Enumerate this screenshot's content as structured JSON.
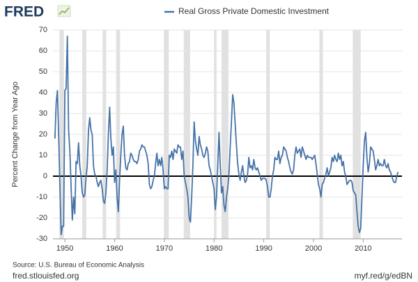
{
  "logo": "FRED",
  "source": "Source: U.S. Bureau of Economic Analysis",
  "footer_left": "fred.stlouisfed.org",
  "footer_right": "myf.red/g/edBN",
  "chart_data": {
    "type": "line",
    "ylabel": "Percent Change from Year Ago",
    "xlim": [
      1947.6,
      2017.8
    ],
    "xticks": [
      1950,
      1960,
      1970,
      1980,
      1990,
      2000,
      2010
    ],
    "ylim": [
      -30,
      70
    ],
    "yticks": [
      -30,
      -20,
      -10,
      0,
      10,
      20,
      30,
      40,
      50,
      60,
      70
    ],
    "grid": true,
    "recessions": [
      [
        1948.9,
        1949.8
      ],
      [
        1953.5,
        1954.3
      ],
      [
        1957.6,
        1958.3
      ],
      [
        1960.3,
        1961.1
      ],
      [
        1969.9,
        1970.9
      ],
      [
        1973.9,
        1975.2
      ],
      [
        1980.0,
        1980.5
      ],
      [
        1981.5,
        1982.9
      ],
      [
        1990.5,
        1991.2
      ],
      [
        2001.2,
        2001.9
      ],
      [
        2007.9,
        2009.5
      ]
    ],
    "recession_color": "#e1e1e1",
    "x": [
      1948,
      1948.25,
      1948.5,
      1948.75,
      1949,
      1949.25,
      1949.5,
      1949.75,
      1950,
      1950.25,
      1950.5,
      1950.75,
      1951,
      1951.25,
      1951.5,
      1951.75,
      1952,
      1952.25,
      1952.5,
      1952.75,
      1953,
      1953.25,
      1953.5,
      1953.75,
      1954,
      1954.25,
      1954.5,
      1954.75,
      1955,
      1955.25,
      1955.5,
      1955.75,
      1956,
      1956.25,
      1956.5,
      1956.75,
      1957,
      1957.25,
      1957.5,
      1957.75,
      1958,
      1958.25,
      1958.5,
      1958.75,
      1959,
      1959.25,
      1959.5,
      1959.75,
      1960,
      1960.25,
      1960.5,
      1960.75,
      1961,
      1961.25,
      1961.5,
      1961.75,
      1962,
      1962.25,
      1962.5,
      1962.75,
      1963,
      1963.25,
      1963.5,
      1963.75,
      1964,
      1964.25,
      1964.5,
      1964.75,
      1965,
      1965.25,
      1965.5,
      1965.75,
      1966,
      1966.25,
      1966.5,
      1966.75,
      1967,
      1967.25,
      1967.5,
      1967.75,
      1968,
      1968.25,
      1968.5,
      1968.75,
      1969,
      1969.25,
      1969.5,
      1969.75,
      1970,
      1970.25,
      1970.5,
      1970.75,
      1971,
      1971.25,
      1971.5,
      1971.75,
      1972,
      1972.25,
      1972.5,
      1972.75,
      1973,
      1973.25,
      1973.5,
      1973.75,
      1974,
      1974.25,
      1974.5,
      1974.75,
      1975,
      1975.25,
      1975.5,
      1975.75,
      1976,
      1976.25,
      1976.5,
      1976.75,
      1977,
      1977.25,
      1977.5,
      1977.75,
      1978,
      1978.25,
      1978.5,
      1978.75,
      1979,
      1979.25,
      1979.5,
      1979.75,
      1980,
      1980.25,
      1980.5,
      1980.75,
      1981,
      1981.25,
      1981.5,
      1981.75,
      1982,
      1982.25,
      1982.5,
      1982.75,
      1983,
      1983.25,
      1983.5,
      1983.75,
      1984,
      1984.25,
      1984.5,
      1984.75,
      1985,
      1985.25,
      1985.5,
      1985.75,
      1986,
      1986.25,
      1986.5,
      1986.75,
      1987,
      1987.25,
      1987.5,
      1987.75,
      1988,
      1988.25,
      1988.5,
      1988.75,
      1989,
      1989.25,
      1989.5,
      1989.75,
      1990,
      1990.25,
      1990.5,
      1990.75,
      1991,
      1991.25,
      1991.5,
      1991.75,
      1992,
      1992.25,
      1992.5,
      1992.75,
      1993,
      1993.25,
      1993.5,
      1993.75,
      1994,
      1994.25,
      1994.5,
      1994.75,
      1995,
      1995.25,
      1995.5,
      1995.75,
      1996,
      1996.25,
      1996.5,
      1996.75,
      1997,
      1997.25,
      1997.5,
      1997.75,
      1998,
      1998.25,
      1998.5,
      1998.75,
      1999,
      1999.25,
      1999.5,
      1999.75,
      2000,
      2000.25,
      2000.5,
      2000.75,
      2001,
      2001.25,
      2001.5,
      2001.75,
      2002,
      2002.25,
      2002.5,
      2002.75,
      2003,
      2003.25,
      2003.5,
      2003.75,
      2004,
      2004.25,
      2004.5,
      2004.75,
      2005,
      2005.25,
      2005.5,
      2005.75,
      2006,
      2006.25,
      2006.5,
      2006.75,
      2007,
      2007.25,
      2007.5,
      2007.75,
      2008,
      2008.25,
      2008.5,
      2008.75,
      2009,
      2009.25,
      2009.5,
      2009.75,
      2010,
      2010.25,
      2010.5,
      2010.75,
      2011,
      2011.25,
      2011.5,
      2011.75,
      2012,
      2012.25,
      2012.5,
      2012.75,
      2013,
      2013.25,
      2013.5,
      2013.75,
      2014,
      2014.25,
      2014.5,
      2014.75,
      2015,
      2015.25,
      2015.5,
      2015.75,
      2016,
      2016.25,
      2016.5,
      2016.75,
      2017
    ],
    "series": [
      {
        "name": "Real Gross Private Domestic Investment",
        "color": "#4572a7",
        "values": [
          18,
          35,
          41,
          20,
          -5,
          -28,
          -24,
          -24,
          41,
          42,
          67,
          22,
          12,
          -5,
          -21,
          -10,
          -18,
          7,
          6,
          16,
          5,
          0,
          -8,
          -10,
          -9,
          -1,
          5,
          22,
          28,
          22,
          20,
          5,
          1,
          0,
          -3,
          -5,
          -3,
          -2,
          -6,
          -12,
          -13,
          -8,
          3,
          20,
          33,
          18,
          10,
          14,
          -3,
          3,
          -10,
          -17,
          -2,
          10,
          20,
          24,
          10,
          4,
          3,
          6,
          7,
          11,
          10,
          8,
          7,
          7,
          6,
          8,
          12,
          13,
          15,
          14,
          14,
          12,
          10,
          6,
          -4,
          -6,
          -5,
          -2,
          0,
          6,
          11,
          5,
          8,
          5,
          9,
          3,
          -6,
          -5,
          -6,
          -6,
          10,
          9,
          12,
          8,
          13,
          12,
          11,
          15,
          14,
          14,
          8,
          12,
          0,
          -3,
          -6,
          -10,
          -20,
          -22,
          -10,
          5,
          26,
          17,
          13,
          10,
          19,
          15,
          13,
          10,
          9,
          11,
          14,
          12,
          5,
          3,
          0,
          -3,
          -6,
          -16,
          -10,
          5,
          21,
          5,
          -8,
          -5,
          -14,
          -17,
          -10,
          -6,
          1,
          14,
          26,
          39,
          35,
          25,
          15,
          6,
          1,
          -2,
          2,
          5,
          0,
          -3,
          -2,
          1,
          9,
          4,
          5,
          3,
          8,
          4,
          3,
          4,
          2,
          0,
          -2,
          -1,
          -1,
          -1,
          -2,
          -5,
          -10,
          -10,
          -6,
          0,
          3,
          9,
          8,
          8,
          12,
          6,
          9,
          10,
          14,
          13,
          12,
          9,
          7,
          4,
          2,
          1,
          3,
          10,
          14,
          11,
          12,
          13,
          9,
          14,
          12,
          10,
          8,
          10,
          9,
          9,
          9,
          8,
          9,
          10,
          6,
          1,
          -4,
          -6,
          -10,
          -4,
          -3,
          -1,
          1,
          4,
          0,
          2,
          4,
          9,
          7,
          10,
          8,
          7,
          11,
          8,
          10,
          5,
          7,
          2,
          0,
          -4,
          -3,
          -2,
          -2,
          -3,
          -7,
          -8,
          -9,
          -17,
          -24,
          -27,
          -25,
          -10,
          5,
          17,
          21,
          9,
          2,
          6,
          14,
          13,
          12,
          8,
          3,
          5,
          8,
          5,
          6,
          5,
          5,
          8,
          5,
          4,
          6,
          3,
          2,
          0,
          -2,
          -3,
          -3,
          0,
          2
        ]
      }
    ]
  }
}
